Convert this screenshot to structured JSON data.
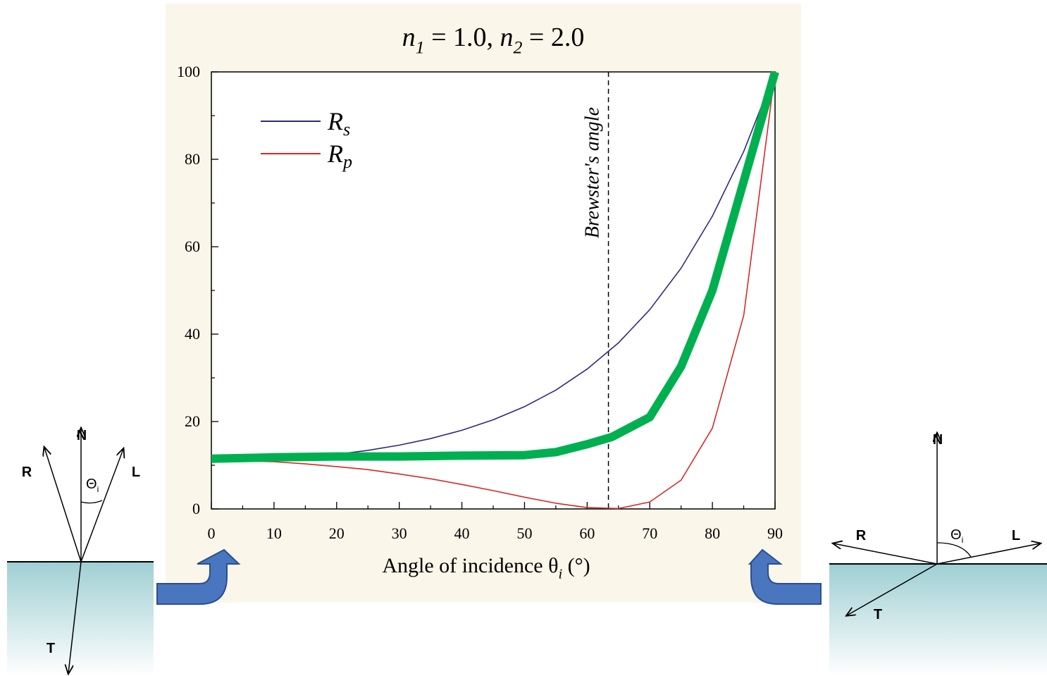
{
  "chart_data": {
    "type": "line",
    "title": [
      {
        "text": "n",
        "italic": true
      },
      {
        "text": "1",
        "sub": true,
        "italic": true
      },
      {
        "text": " = 1.0,  "
      },
      {
        "text": "n",
        "italic": true
      },
      {
        "text": "2",
        "sub": true,
        "italic": true
      },
      {
        "text": " = 2.0"
      }
    ],
    "xlabel": [
      {
        "text": "Angle of incidence θ"
      },
      {
        "text": "i",
        "sub": true,
        "italic": true
      },
      {
        "text": " (°)"
      }
    ],
    "x": [
      0,
      5,
      10,
      15,
      20,
      25,
      30,
      35,
      40,
      45,
      50,
      55,
      60,
      65,
      70,
      75,
      80,
      85,
      90
    ],
    "series": [
      {
        "name": "Rs",
        "color": "#2e2a7e",
        "width": 1.6,
        "values": [
          11.1,
          11.2,
          11.5,
          11.9,
          12.5,
          13.4,
          14.6,
          16.1,
          18.0,
          20.4,
          23.4,
          27.2,
          32.0,
          38.0,
          45.6,
          55.1,
          67.0,
          81.8,
          100
        ]
      },
      {
        "name": "Rp",
        "color": "#d42a2a",
        "width": 1.6,
        "values": [
          11.1,
          11.0,
          10.8,
          10.3,
          9.7,
          9.0,
          8.0,
          6.9,
          5.6,
          4.2,
          2.7,
          1.3,
          0.3,
          0.1,
          1.6,
          6.6,
          18.5,
          44.3,
          100
        ]
      },
      {
        "color": "#00b050",
        "width": 12,
        "x": [
          0,
          10,
          20,
          30,
          40,
          50,
          55,
          60,
          64,
          70,
          75,
          80,
          85,
          90
        ],
        "values": [
          11.5,
          11.8,
          12.0,
          12.0,
          12.2,
          12.3,
          13.0,
          14.8,
          16.5,
          21.0,
          32.6,
          50.0,
          75.0,
          100
        ]
      }
    ],
    "xlim": [
      0,
      90
    ],
    "xticks": [
      0,
      10,
      20,
      30,
      40,
      50,
      60,
      70,
      80,
      90
    ],
    "xminorticks": [
      5,
      15,
      25,
      35,
      45,
      55,
      65,
      75,
      85
    ],
    "ylim": [
      0,
      100
    ],
    "yticks": [
      0,
      20,
      40,
      60,
      80,
      100
    ],
    "yminorticks": [
      10,
      30,
      50,
      70,
      90
    ],
    "annotations": [
      {
        "text": "Brewster's angle",
        "x": 63.4
      }
    ]
  },
  "diagrams": [
    {
      "N": "N",
      "R": "R",
      "L": "L",
      "T": "T",
      "theta": "Θ",
      "theta_sub": "i"
    },
    {
      "N": "N",
      "R": "R",
      "L": "L",
      "T": "T",
      "theta": "Θ",
      "theta_sub": "i"
    }
  ]
}
